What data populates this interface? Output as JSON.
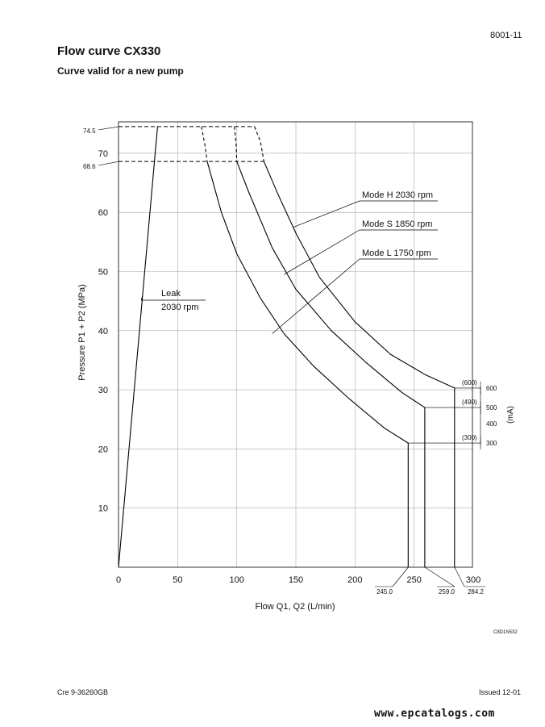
{
  "header": {
    "page_number": "8001-11",
    "title": "Flow curve CX330",
    "subtitle": "Curve valid for a new pump"
  },
  "footer": {
    "document_code": "Cre  9-36260GB",
    "issue": "Issued 12-01",
    "watermark": "www.epcatalogs.com",
    "figure_code": "C8D1N532"
  },
  "chart_data": {
    "type": "line",
    "title": "",
    "xlabel": "Flow Q1, Q2 (L/min)",
    "ylabel": "Pressure P1 + P2 (MPa)",
    "right_axis_label": "(mA)",
    "xlim": [
      0,
      300
    ],
    "ylim": [
      0,
      74.5
    ],
    "x_ticks": [
      0,
      50,
      100,
      150,
      200,
      250,
      300
    ],
    "y_ticks": [
      10,
      20,
      30,
      40,
      50,
      60,
      70
    ],
    "grid": true,
    "pressure_levels": [
      {
        "label": "74.5",
        "value": 74.5
      },
      {
        "label": "68.6",
        "value": 68.6
      }
    ],
    "flow_markers": [
      {
        "label": "245.0",
        "value": 245.0
      },
      {
        "label": "259.0",
        "value": 259.0
      },
      {
        "label": "284.2",
        "value": 284.2
      }
    ],
    "current_markers": [
      {
        "label": "(600)",
        "scale": "600",
        "pressure": 30.3
      },
      {
        "label": "(490)",
        "scale": "500",
        "pressure": 27.0
      },
      {
        "label": "(300)",
        "scale": "300",
        "pressure": 21.0
      }
    ],
    "series": [
      {
        "name": "Leak 2030 rpm",
        "label_lines": [
          "Leak",
          "2030 rpm"
        ],
        "style": "solid",
        "x": [
          0,
          33
        ],
        "y": [
          0,
          74.5
        ]
      },
      {
        "name": "Mode H 2030 rpm",
        "style": "solid",
        "x": [
          123,
          135,
          150,
          170,
          200,
          230,
          260,
          284.2,
          284.2
        ],
        "y": [
          68.6,
          63.0,
          56.5,
          49.0,
          41.5,
          36.0,
          32.5,
          30.3,
          0
        ],
        "dashed_extension": {
          "x": [
            115,
            120,
            123
          ],
          "y": [
            74.5,
            72.0,
            68.6
          ]
        }
      },
      {
        "name": "Mode S 1850 rpm",
        "style": "solid",
        "x": [
          100,
          110,
          130,
          150,
          180,
          210,
          240,
          259.0,
          259.0
        ],
        "y": [
          68.6,
          63.5,
          54.0,
          47.0,
          40.0,
          34.5,
          29.5,
          27.0,
          0
        ],
        "dashed_extension": {
          "x": [
            98,
            99.5,
            100
          ],
          "y": [
            74.5,
            71.5,
            68.6
          ]
        }
      },
      {
        "name": "Mode L 1750 rpm",
        "style": "solid",
        "x": [
          75,
          87,
          100,
          120,
          140,
          165,
          195,
          225,
          245.0,
          245.0
        ],
        "y": [
          68.6,
          60.0,
          53.0,
          45.5,
          39.5,
          34.0,
          28.5,
          23.5,
          21.0,
          0
        ],
        "dashed_extension": {
          "x": [
            70,
            73,
            75
          ],
          "y": [
            74.5,
            71.5,
            68.6
          ]
        }
      }
    ]
  }
}
